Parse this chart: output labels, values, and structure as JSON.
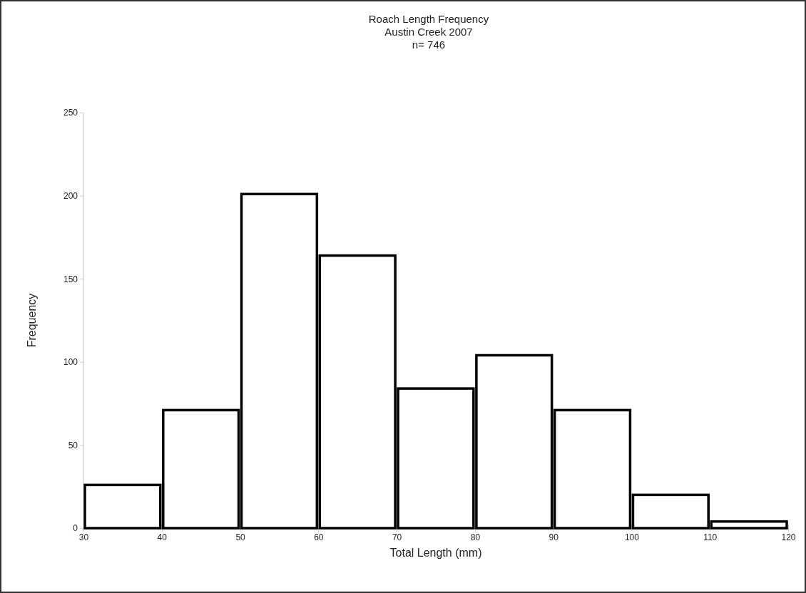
{
  "chart_data": {
    "type": "histogram",
    "title": "Roach Length Frequency\nAustin Creek 2007\nn= 746",
    "xlabel": "Total Length (mm)",
    "ylabel": "Frequency",
    "bins": [
      30,
      40,
      50,
      60,
      70,
      80,
      90,
      100,
      110,
      120
    ],
    "values": [
      26,
      71,
      201,
      164,
      84,
      104,
      71,
      20,
      4
    ],
    "color": "#ffffff",
    "xlim": [
      30,
      120
    ],
    "xticks": [
      30,
      40,
      50,
      60,
      70,
      80,
      90,
      100,
      110,
      120
    ],
    "ylim": [
      0,
      250
    ],
    "yticks": [
      0,
      50,
      100,
      150,
      200,
      250
    ],
    "grid": false
  }
}
